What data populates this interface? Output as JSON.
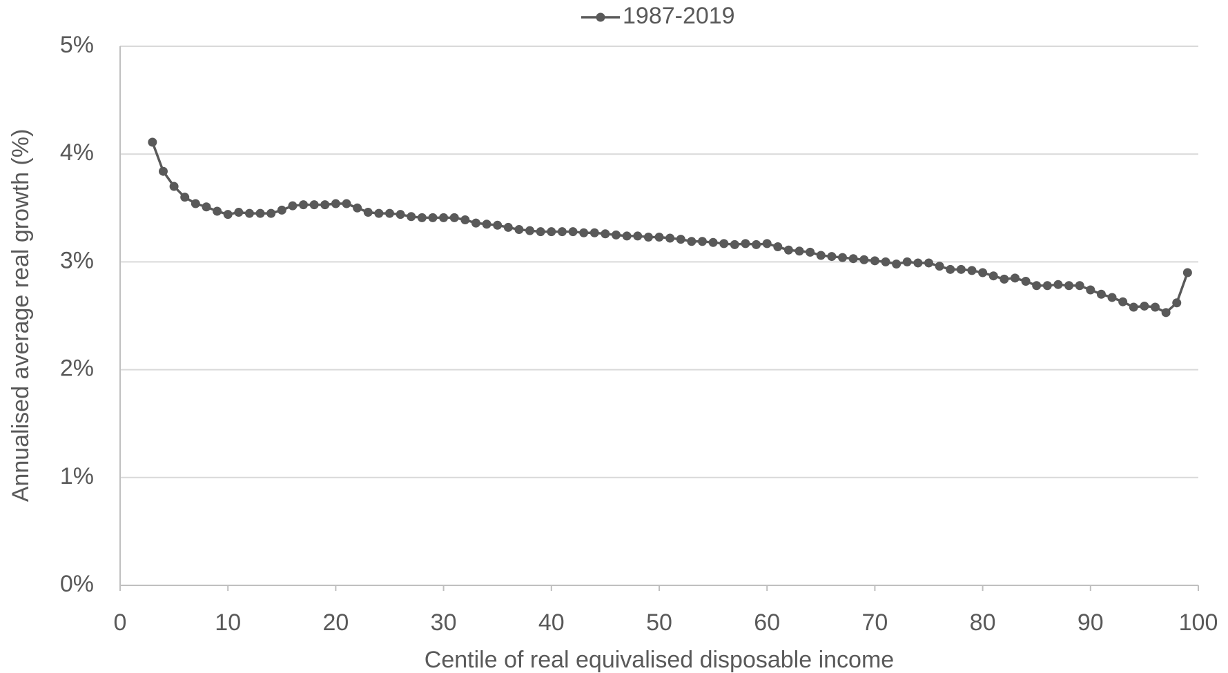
{
  "chart_data": {
    "type": "line",
    "xlabel": "Centile of real equivalised disposable income",
    "ylabel": "Annualised average real growth (%)",
    "x": [
      3,
      4,
      5,
      6,
      7,
      8,
      9,
      10,
      11,
      12,
      13,
      14,
      15,
      16,
      17,
      18,
      19,
      20,
      21,
      22,
      23,
      24,
      25,
      26,
      27,
      28,
      29,
      30,
      31,
      32,
      33,
      34,
      35,
      36,
      37,
      38,
      39,
      40,
      41,
      42,
      43,
      44,
      45,
      46,
      47,
      48,
      49,
      50,
      51,
      52,
      53,
      54,
      55,
      56,
      57,
      58,
      59,
      60,
      61,
      62,
      63,
      64,
      65,
      66,
      67,
      68,
      69,
      70,
      71,
      72,
      73,
      74,
      75,
      76,
      77,
      78,
      79,
      80,
      81,
      82,
      83,
      84,
      85,
      86,
      87,
      88,
      89,
      90,
      91,
      92,
      93,
      94,
      95,
      96,
      97,
      98,
      99
    ],
    "series": [
      {
        "name": "1987-2019",
        "color": "#595959",
        "values": [
          4.11,
          3.84,
          3.7,
          3.6,
          3.54,
          3.51,
          3.47,
          3.44,
          3.46,
          3.45,
          3.45,
          3.45,
          3.48,
          3.52,
          3.53,
          3.53,
          3.53,
          3.54,
          3.54,
          3.5,
          3.46,
          3.45,
          3.45,
          3.44,
          3.42,
          3.41,
          3.41,
          3.41,
          3.41,
          3.39,
          3.36,
          3.35,
          3.34,
          3.32,
          3.3,
          3.29,
          3.28,
          3.28,
          3.28,
          3.28,
          3.27,
          3.27,
          3.26,
          3.25,
          3.24,
          3.24,
          3.23,
          3.23,
          3.22,
          3.21,
          3.19,
          3.19,
          3.18,
          3.17,
          3.16,
          3.17,
          3.16,
          3.17,
          3.14,
          3.11,
          3.1,
          3.09,
          3.06,
          3.05,
          3.04,
          3.03,
          3.02,
          3.01,
          3.0,
          2.98,
          3.0,
          2.99,
          2.99,
          2.96,
          2.93,
          2.93,
          2.92,
          2.9,
          2.87,
          2.84,
          2.85,
          2.82,
          2.78,
          2.78,
          2.79,
          2.78,
          2.78,
          2.74,
          2.7,
          2.67,
          2.63,
          2.58,
          2.59,
          2.58,
          2.53,
          2.62,
          2.9
        ]
      }
    ],
    "xlim": [
      0,
      100
    ],
    "xticks": [
      0,
      10,
      20,
      30,
      40,
      50,
      60,
      70,
      80,
      90,
      100
    ],
    "ylim": [
      0,
      5
    ],
    "yticks": [
      {
        "value": 0,
        "label": "0%"
      },
      {
        "value": 1,
        "label": "1%"
      },
      {
        "value": 2,
        "label": "2%"
      },
      {
        "value": 3,
        "label": "3%"
      },
      {
        "value": 4,
        "label": "4%"
      },
      {
        "value": 5,
        "label": "5%"
      }
    ],
    "grid": true,
    "legend": "top"
  }
}
